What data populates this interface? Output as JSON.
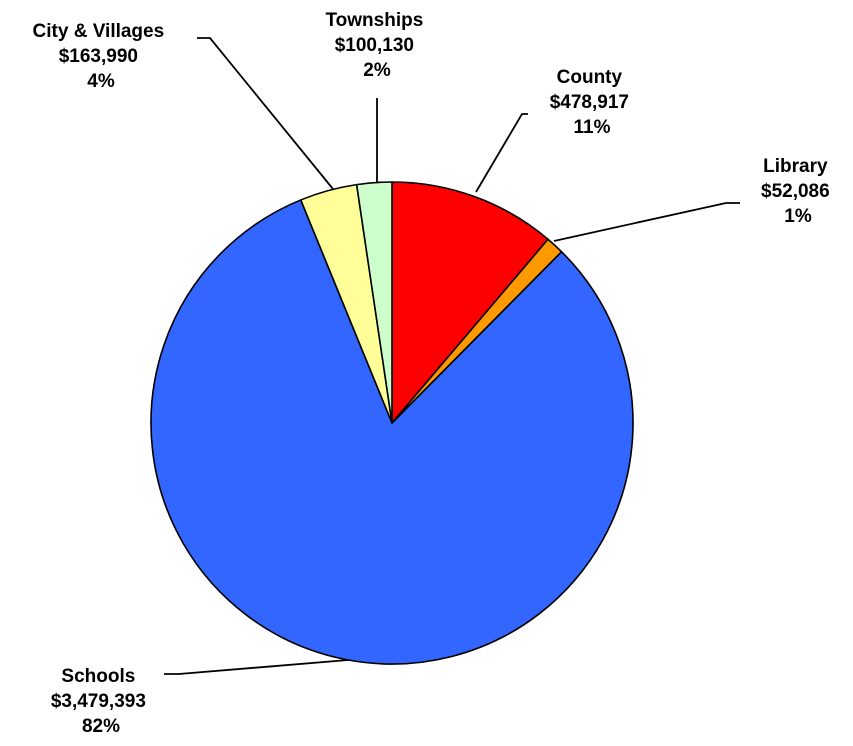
{
  "chart_data": {
    "type": "pie",
    "title": "",
    "slices": [
      {
        "name": "County",
        "amount": "$478,917",
        "percent": "11%",
        "value": 478917,
        "color": "#ff0000"
      },
      {
        "name": "Library",
        "amount": "$52,086",
        "percent": "1%",
        "value": 52086,
        "color": "#ff9900"
      },
      {
        "name": "Schools",
        "amount": "$3,479,393",
        "percent": "82%",
        "value": 3479393,
        "color": "#3366ff"
      },
      {
        "name": "City & Villages",
        "amount": "$163,990",
        "percent": "4%",
        "value": 163990,
        "color": "#ffff99"
      },
      {
        "name": "Townships",
        "amount": "$100,130",
        "percent": "2%",
        "value": 100130,
        "color": "#ccffcc"
      }
    ],
    "start_angle_deg": 0,
    "direction": "clockwise",
    "labels": "outside with leader lines"
  }
}
